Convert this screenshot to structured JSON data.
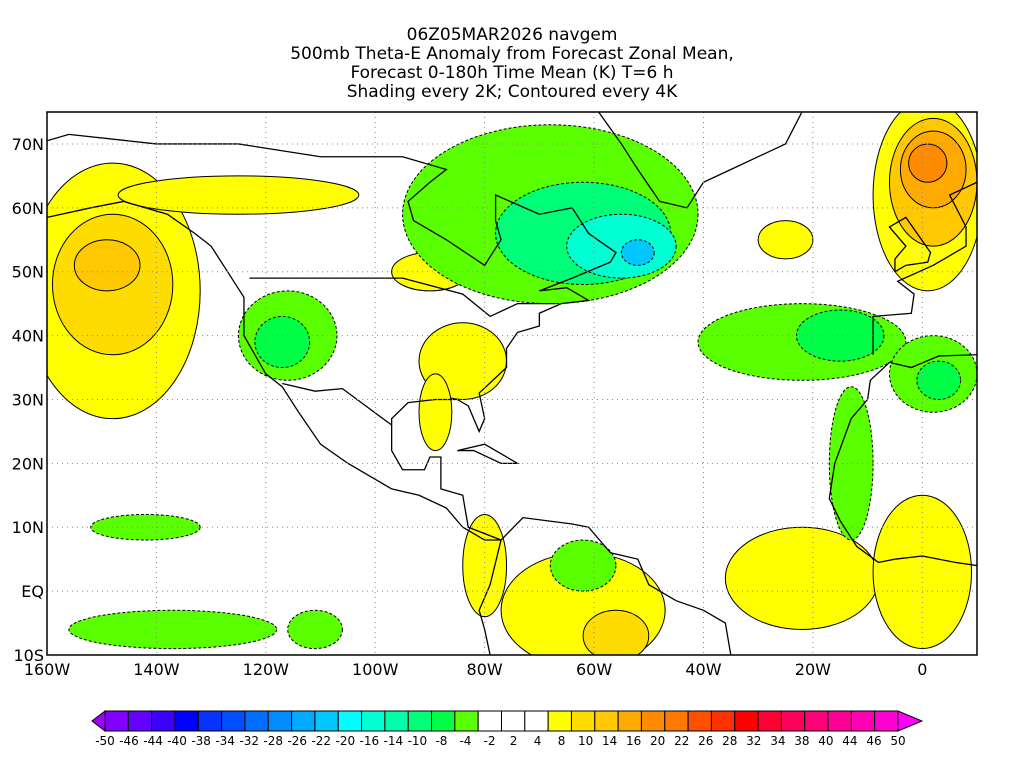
{
  "chart_data": {
    "type": "heatmap",
    "title_lines": [
      "06Z05MAR2026 navgem",
      "500mb Theta-E Anomaly from Forecast Zonal Mean,",
      "Forecast 0-180h Time Mean (K) T=6 h",
      "Shading every 2K; Contoured every 4K"
    ],
    "xlim": [
      -160,
      10
    ],
    "ylim": [
      -10,
      75
    ],
    "x_ticks": [
      {
        "v": -160,
        "label": "160W"
      },
      {
        "v": -140,
        "label": "140W"
      },
      {
        "v": -120,
        "label": "120W"
      },
      {
        "v": -100,
        "label": "100W"
      },
      {
        "v": -80,
        "label": "80W"
      },
      {
        "v": -60,
        "label": "60W"
      },
      {
        "v": -40,
        "label": "40W"
      },
      {
        "v": -20,
        "label": "20W"
      },
      {
        "v": 0,
        "label": "0"
      }
    ],
    "y_ticks": [
      {
        "v": 70,
        "label": "70N"
      },
      {
        "v": 60,
        "label": "60N"
      },
      {
        "v": 50,
        "label": "50N"
      },
      {
        "v": 40,
        "label": "40N"
      },
      {
        "v": 30,
        "label": "30N"
      },
      {
        "v": 20,
        "label": "20N"
      },
      {
        "v": 10,
        "label": "10N"
      },
      {
        "v": 0,
        "label": "EQ"
      },
      {
        "v": -10,
        "label": "10S"
      }
    ],
    "grid": true,
    "colorbar": {
      "labels": [
        "-50",
        "-46",
        "-44",
        "-40",
        "-38",
        "-34",
        "-32",
        "-28",
        "-26",
        "-22",
        "-20",
        "-16",
        "-14",
        "-10",
        "-8",
        "-4",
        "-2",
        "2",
        "4",
        "8",
        "10",
        "14",
        "16",
        "20",
        "22",
        "26",
        "28",
        "32",
        "34",
        "38",
        "40",
        "44",
        "46",
        "50"
      ],
      "colors": [
        "#a000ff",
        "#8200ff",
        "#6400ff",
        "#3c00ff",
        "#0000ff",
        "#0a32ff",
        "#0050ff",
        "#006eff",
        "#008cff",
        "#00aaff",
        "#00c8ff",
        "#00ffff",
        "#00ffd2",
        "#00ffaa",
        "#00ff78",
        "#00ff46",
        "#5aff00",
        "#ffffff",
        "#ffffff",
        "#ffffff",
        "#ffff00",
        "#ffdc00",
        "#ffc800",
        "#ffaa00",
        "#ff8c00",
        "#ff7800",
        "#ff5000",
        "#ff3200",
        "#ff0000",
        "#ff0032",
        "#ff005a",
        "#ff0078",
        "#ff0096",
        "#ff00b4",
        "#ff00d2",
        "#ff00ff"
      ]
    },
    "anomaly_regions": [
      {
        "name": "ne-pacific-warm",
        "lon": -148,
        "lat": 47,
        "rlon": 16,
        "rlat": 20,
        "value": 4
      },
      {
        "name": "ne-pacific-warm-core",
        "lon": -148,
        "lat": 48,
        "rlon": 11,
        "rlat": 11,
        "value": 8
      },
      {
        "name": "ne-pacific-warm-center",
        "lon": -149,
        "lat": 51,
        "rlon": 6,
        "rlat": 4,
        "value": 10
      },
      {
        "name": "canada-warm-band",
        "lon": -125,
        "lat": 62,
        "rlon": 22,
        "rlat": 3,
        "value": 4
      },
      {
        "name": "great-lakes-warm",
        "lon": -90,
        "lat": 50,
        "rlon": 7,
        "rlat": 3,
        "value": 4
      },
      {
        "name": "se-us-warm",
        "lon": -84,
        "lat": 36,
        "rlon": 8,
        "rlat": 6,
        "value": 4
      },
      {
        "name": "gulf-warm",
        "lon": -89,
        "lat": 28,
        "rlon": 3,
        "rlat": 6,
        "value": 4
      },
      {
        "name": "s-america-warm",
        "lon": -62,
        "lat": -3,
        "rlon": 15,
        "rlat": 9,
        "value": 4
      },
      {
        "name": "s-america-warm-core",
        "lon": -56,
        "lat": -7,
        "rlon": 6,
        "rlat": 4,
        "value": 8
      },
      {
        "name": "central-america-warm",
        "lon": -80,
        "lat": 4,
        "rlon": 4,
        "rlat": 8,
        "value": 4
      },
      {
        "name": "tropical-atlantic-warm",
        "lon": -22,
        "lat": 2,
        "rlon": 14,
        "rlat": 8,
        "value": 4
      },
      {
        "name": "africa-warm",
        "lon": 0,
        "lat": 3,
        "rlon": 9,
        "rlat": 12,
        "value": 4
      },
      {
        "name": "mid-atlantic-warm",
        "lon": -25,
        "lat": 55,
        "rlon": 5,
        "rlat": 3,
        "value": 4
      },
      {
        "name": "europe-warm",
        "lon": 1,
        "lat": 62,
        "rlon": 10,
        "rlat": 15,
        "value": 4
      },
      {
        "name": "europe-warm-core",
        "lon": 2,
        "lat": 64,
        "rlon": 8,
        "rlat": 10,
        "value": 10
      },
      {
        "name": "europe-warm-inner",
        "lon": 2,
        "lat": 66,
        "rlon": 6,
        "rlat": 6,
        "value": 14
      },
      {
        "name": "europe-warm-center",
        "lon": 1,
        "lat": 67,
        "rlon": 3.5,
        "rlat": 3,
        "value": 16
      },
      {
        "name": "canada-cold",
        "lon": -68,
        "lat": 59,
        "rlon": 27,
        "rlat": 14,
        "value": -4
      },
      {
        "name": "canada-cold-core",
        "lon": -62,
        "lat": 56,
        "rlon": 16,
        "rlat": 8,
        "value": -10
      },
      {
        "name": "labrador-cold",
        "lon": -55,
        "lat": 54,
        "rlon": 10,
        "rlat": 5,
        "value": -16
      },
      {
        "name": "labrador-cold-center",
        "lon": -52,
        "lat": 53,
        "rlon": 3,
        "rlat": 2,
        "value": -22
      },
      {
        "name": "w-us-cold",
        "lon": -116,
        "lat": 40,
        "rlon": 9,
        "rlat": 7,
        "value": -4
      },
      {
        "name": "w-us-cold-core",
        "lon": -117,
        "lat": 39,
        "rlon": 5,
        "rlat": 4,
        "value": -8
      },
      {
        "name": "atlantic-cold",
        "lon": -22,
        "lat": 39,
        "rlon": 19,
        "rlat": 6,
        "value": -4
      },
      {
        "name": "atlantic-cold-core",
        "lon": -15,
        "lat": 40,
        "rlon": 8,
        "rlat": 4,
        "value": -8
      },
      {
        "name": "nw-africa-cold",
        "lon": 2,
        "lat": 34,
        "rlon": 8,
        "rlat": 6,
        "value": -4
      },
      {
        "name": "nw-africa-cold-core",
        "lon": 3,
        "lat": 33,
        "rlon": 4,
        "rlat": 3,
        "value": -8
      },
      {
        "name": "atlantic-cold-tail",
        "lon": -13,
        "lat": 20,
        "rlon": 4,
        "rlat": 12,
        "value": -4
      },
      {
        "name": "pacific-cold-south",
        "lon": -137,
        "lat": -6,
        "rlon": 19,
        "rlat": 3,
        "value": -4
      },
      {
        "name": "pacific-cold-north",
        "lon": -142,
        "lat": 10,
        "rlon": 10,
        "rlat": 2,
        "value": -4
      },
      {
        "name": "pacific-cold-east",
        "lon": -111,
        "lat": -6,
        "rlon": 5,
        "rlat": 3,
        "value": -4
      },
      {
        "name": "caribbean-cold",
        "lon": -62,
        "lat": 4,
        "rlon": 6,
        "rlat": 4,
        "value": -4
      }
    ]
  }
}
